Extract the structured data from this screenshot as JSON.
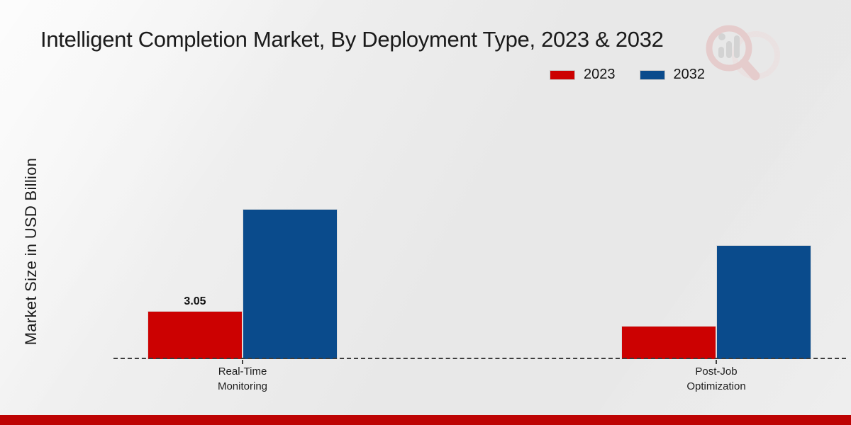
{
  "chart_data": {
    "type": "bar",
    "title": "Intelligent Completion Market, By Deployment Type, 2023 & 2032",
    "ylabel": "Market Size in USD Billion",
    "xlabel": "",
    "categories": [
      "Real-Time Monitoring",
      "Post-Job Optimization"
    ],
    "category_lines": [
      [
        "Real-Time",
        "Monitoring"
      ],
      [
        "Post-Job",
        "Optimization"
      ]
    ],
    "series": [
      {
        "name": "2023",
        "color": "#cc0101",
        "values": [
          3.05,
          2.1
        ]
      },
      {
        "name": "2032",
        "color": "#0a4b8c",
        "values": [
          9.5,
          7.2
        ]
      }
    ],
    "value_labels": [
      {
        "series_index": 0,
        "category_index": 0,
        "text": "3.05"
      }
    ],
    "legend_position": "top-right",
    "grid": false,
    "baseline_style": "dashed",
    "ylim": [
      0,
      10
    ]
  },
  "colors": {
    "accent_red": "#cc0101",
    "accent_blue": "#0a4b8c",
    "footer_bar": "#bd0303",
    "background": "#e9e9e9",
    "text": "#1a1a1a"
  },
  "watermark": {
    "icon": "magnifier-bar-chart-icon"
  }
}
